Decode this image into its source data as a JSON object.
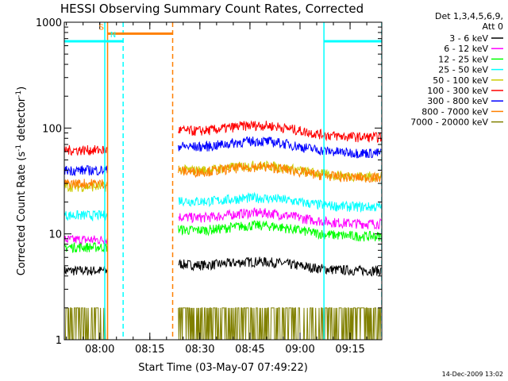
{
  "chart_data": {
    "type": "line",
    "title": "HESSI Observing Summary Count Rates, Corrected",
    "xlabel": "Start Time (03-May-07 07:49:22)",
    "ylabel": "Corrected Count Rate (s⁻¹ detector⁻¹)",
    "ylabel_main": "Corrected Count Rate (s",
    "ylabel_exp": "-1",
    "ylabel_mid": " detector",
    "ylabel_end": ")",
    "y_scale": "log",
    "ylim": [
      1,
      1000
    ],
    "y_ticks": [
      {
        "value": 1,
        "label": "1"
      },
      {
        "value": 10,
        "label": "10"
      },
      {
        "value": 100,
        "label": "100"
      },
      {
        "value": 1000,
        "label": "1000"
      }
    ],
    "xlim": [
      "07:49:22",
      "09:24:30"
    ],
    "x_ticks": [
      "08:00",
      "08:15",
      "08:30",
      "08:45",
      "09:00",
      "09:15"
    ],
    "legend_header": [
      "Det 1,3,4,5,6,9,",
      "Att 0"
    ],
    "legend_placement": "right",
    "footer": "14-Dec-2009 13:02",
    "grid": false,
    "series": [
      {
        "name": "3 - 6 keV",
        "color": "#000000",
        "level_before": 4.5,
        "level_after": 4.5,
        "bump": 1.2
      },
      {
        "name": "6 - 12 keV",
        "color": "#ff00ff",
        "level_before": 8.8,
        "level_after": 12.5,
        "bump": 1.25
      },
      {
        "name": "12 - 25 keV",
        "color": "#00ff00",
        "level_before": 7.5,
        "level_after": 9.5,
        "bump": 1.25
      },
      {
        "name": "25 - 50 keV",
        "color": "#00ffff",
        "level_before": 15,
        "level_after": 18,
        "bump": 1.2
      },
      {
        "name": "50 - 100 keV",
        "color": "#cccc00",
        "level_before": 28,
        "level_after": 35,
        "bump": 1.25
      },
      {
        "name": "100 - 300 keV",
        "color": "#ff0000",
        "level_before": 62,
        "level_after": 82,
        "bump": 1.28
      },
      {
        "name": "300 - 800 keV",
        "color": "#0000ff",
        "level_before": 40,
        "level_after": 58,
        "bump": 1.28
      },
      {
        "name": "800 - 7000 keV",
        "color": "#ff8000",
        "level_before": 30,
        "level_after": 34,
        "bump": 1.25
      },
      {
        "name": "7000 - 20000 keV",
        "color": "#808000",
        "level_before": 1.6,
        "level_after": 1.6,
        "bump": 1.0
      }
    ],
    "annotations": [
      {
        "label": "S",
        "color": "#ff8000",
        "start": "08:02:20",
        "end": "08:21:50",
        "level": 780
      },
      {
        "label": "N",
        "color": "#00ffff",
        "start": "07:49:22",
        "end": "08:07:00",
        "level": 660
      },
      {
        "label": "",
        "color": "#00ffff",
        "start": "09:07:10",
        "end": "09:24:30",
        "level": 660
      }
    ],
    "gaps": [
      {
        "start": "08:02:20",
        "end": "08:23:30"
      }
    ],
    "verticals": [
      {
        "time": "08:02:20",
        "color": "#ff8000",
        "dashed": false
      },
      {
        "time": "08:01:30",
        "color": "#00ffff",
        "dashed": false
      },
      {
        "time": "08:07:00",
        "color": "#00ffff",
        "dashed": true
      },
      {
        "time": "08:21:50",
        "color": "#ff8000",
        "dashed": true
      },
      {
        "time": "09:07:10",
        "color": "#00ffff",
        "dashed": false
      },
      {
        "time": "09:24:30",
        "color": "#00ffff",
        "dashed": true
      }
    ]
  }
}
